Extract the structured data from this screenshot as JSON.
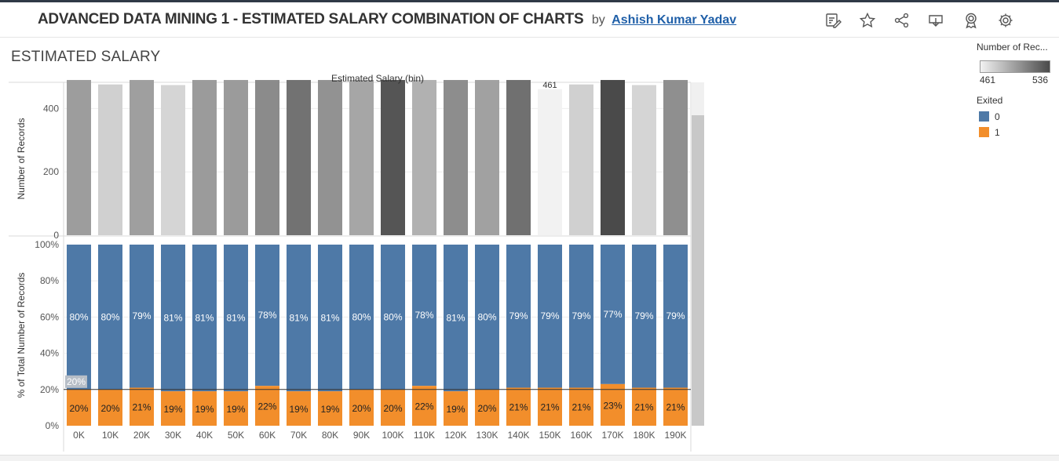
{
  "header": {
    "title": "ADVANCED DATA MINING 1 - ESTIMATED SALARY COMBINATION OF CHARTS",
    "by": "by",
    "author": "Ashish Kumar Yadav",
    "icons": [
      "edit-icon",
      "star-icon",
      "share-icon",
      "download-icon",
      "badge-icon",
      "settings-icon"
    ]
  },
  "sheet": {
    "title": "ESTIMATED SALARY"
  },
  "legend": {
    "records_title": "Number of Rec...",
    "min": "461",
    "max": "536",
    "exited_title": "Exited",
    "items": [
      {
        "label": "0",
        "color": "#4e79a7"
      },
      {
        "label": "1",
        "color": "#f28e2b"
      }
    ]
  },
  "chart_data": [
    {
      "type": "bar",
      "title": "Estimated Salary (bin)",
      "xlabel": "",
      "ylabel": "Number of Records",
      "categories": [
        "0K",
        "10K",
        "20K",
        "30K",
        "40K",
        "50K",
        "60K",
        "70K",
        "80K",
        "90K",
        "100K",
        "110K",
        "120K",
        "130K",
        "140K",
        "150K",
        "160K",
        "170K",
        "180K",
        "190K"
      ],
      "values": [
        499,
        476,
        498,
        474,
        500,
        500,
        507,
        518,
        504,
        495,
        531,
        490,
        506,
        497,
        519,
        461,
        476,
        536,
        474,
        505
      ],
      "yticks": [
        "0",
        "200",
        "400"
      ],
      "visible_data_labels": {
        "150K": "461"
      },
      "ylim": [
        0,
        490
      ],
      "color_scale": {
        "field": "Number of Records",
        "min": 461,
        "max": 536,
        "from": "#f2f2f2",
        "to": "#4a4a4a"
      }
    },
    {
      "type": "bar",
      "stacked": true,
      "xlabel": "",
      "ylabel": "% of Total Number of Records",
      "categories": [
        "0K",
        "10K",
        "20K",
        "30K",
        "40K",
        "50K",
        "60K",
        "70K",
        "80K",
        "90K",
        "100K",
        "110K",
        "120K",
        "130K",
        "140K",
        "150K",
        "160K",
        "170K",
        "180K",
        "190K"
      ],
      "series": [
        {
          "name": "0",
          "color": "#4e79a7",
          "values": [
            80,
            80,
            79,
            81,
            81,
            81,
            78,
            81,
            81,
            80,
            80,
            78,
            81,
            80,
            79,
            79,
            79,
            77,
            79,
            79
          ],
          "labels": [
            "80%",
            "80%",
            "79%",
            "81%",
            "81%",
            "81%",
            "78%",
            "81%",
            "81%",
            "80%",
            "80%",
            "78%",
            "81%",
            "80%",
            "79%",
            "79%",
            "79%",
            "77%",
            "79%",
            "79%"
          ]
        },
        {
          "name": "1",
          "color": "#f28e2b",
          "values": [
            20,
            20,
            21,
            19,
            19,
            19,
            22,
            19,
            19,
            20,
            20,
            22,
            19,
            20,
            21,
            21,
            21,
            23,
            21,
            21
          ],
          "labels": [
            "20%",
            "20%",
            "21%",
            "19%",
            "19%",
            "19%",
            "22%",
            "19%",
            "19%",
            "20%",
            "20%",
            "22%",
            "19%",
            "20%",
            "21%",
            "21%",
            "21%",
            "23%",
            "21%",
            "21%"
          ]
        }
      ],
      "yticks": [
        "0%",
        "20%",
        "40%",
        "60%",
        "80%",
        "100%"
      ],
      "ylim": [
        0,
        100
      ],
      "reference_line": {
        "value": 20,
        "label": "20%"
      }
    }
  ]
}
